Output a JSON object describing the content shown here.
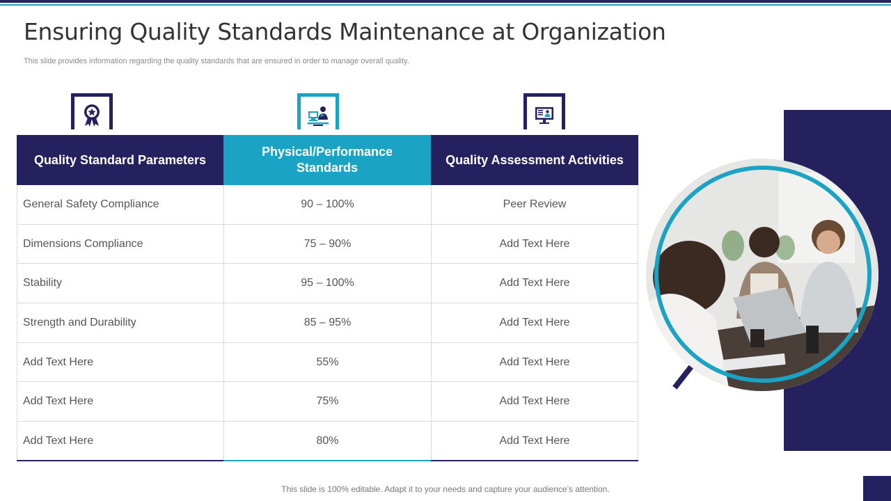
{
  "slide": {
    "title": "Ensuring Quality Standards Maintenance at Organization",
    "subtitle": "This slide provides information regarding the quality standards that are ensured in order to manage overall quality.",
    "footer": "This slide is 100% editable. Adapt it to your needs and capture your audience’s attention."
  },
  "icons": [
    {
      "name": "award-badge-icon",
      "color": "#25215e"
    },
    {
      "name": "engineer-workstation-icon",
      "color": "#1aa3c4"
    },
    {
      "name": "monitor-profile-icon",
      "color": "#25215e"
    }
  ],
  "table": {
    "headers": [
      "Quality Standard Parameters",
      "Physical/Performance Standards",
      "Quality Assessment Activities"
    ],
    "rows": [
      [
        "General Safety Compliance",
        "90 – 100%",
        "Peer Review"
      ],
      [
        "Dimensions Compliance",
        "75 – 90%",
        "Add Text Here"
      ],
      [
        "Stability",
        "95 – 100%",
        "Add Text Here"
      ],
      [
        "Strength and Durability",
        "85 – 95%",
        "Add Text Here"
      ],
      [
        "Add Text Here",
        "55%",
        "Add Text Here"
      ],
      [
        "Add Text Here",
        "75%",
        "Add Text Here"
      ],
      [
        "Add Text Here",
        "80%",
        "Add Text Here"
      ]
    ]
  },
  "colors": {
    "navy": "#25215e",
    "teal": "#1aa3c4",
    "border": "#d9d9d9"
  }
}
